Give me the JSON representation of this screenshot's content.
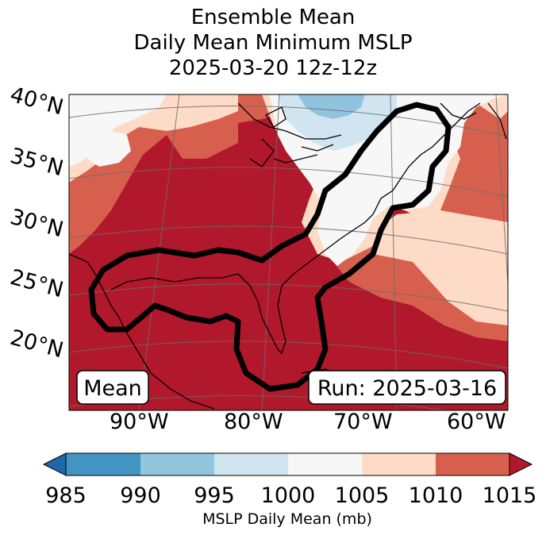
{
  "title": {
    "line1": "Ensemble Mean",
    "line2": "Daily Mean Minimum MSLP",
    "line3": "2025-03-20 12z-12z"
  },
  "map": {
    "lat_labels": [
      "40°N",
      "35°N",
      "30°N",
      "25°N",
      "20°N"
    ],
    "lon_labels": [
      "90°W",
      "80°W",
      "70°W",
      "60°W"
    ],
    "badge_left": "Mean",
    "badge_right": "Run: 2025-03-16",
    "colors": {
      "985": "#2c7bb6",
      "990": "#91c3de",
      "995": "#d1e5f0",
      "1000": "#f7f7f7",
      "1005": "#fddbc7",
      "1010": "#d6604d",
      "1015": "#b2182b"
    }
  },
  "colorbar": {
    "label": "MSLP Daily Mean (mb)",
    "ticks": [
      "985",
      "990",
      "995",
      "1000",
      "1005",
      "1010",
      "1015"
    ],
    "bins": [
      {
        "range": "<985",
        "color": "#2166ac"
      },
      {
        "range": "985-990",
        "color": "#4393c3"
      },
      {
        "range": "990-995",
        "color": "#92c5de"
      },
      {
        "range": "995-1000",
        "color": "#d1e5f0"
      },
      {
        "range": "1000-1005",
        "color": "#f7f7f7"
      },
      {
        "range": "1005-1010",
        "color": "#fddbc7"
      },
      {
        "range": "1010-1015",
        "color": "#d6604d"
      },
      {
        "range": ">1015",
        "color": "#b2182b"
      }
    ]
  }
}
